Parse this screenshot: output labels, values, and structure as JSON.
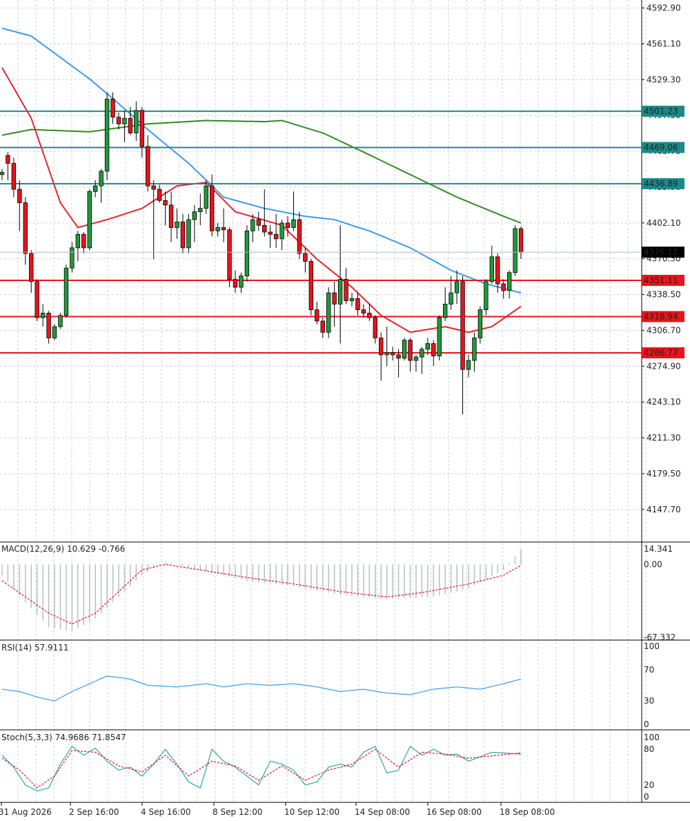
{
  "chart_data": [
    {
      "panel": "price",
      "type": "candlestick",
      "y_axis_labels": [
        "4592.90",
        "4561.10",
        "4529.30",
        "4497.50",
        "4465.70",
        "4433.90",
        "4402.10",
        "4370.30",
        "4338.50",
        "4306.70",
        "4274.90",
        "4243.10",
        "4211.30",
        "4179.50",
        "4147.70"
      ],
      "ylim": [
        4120,
        4600
      ],
      "current_price": "4376.12",
      "levels": [
        {
          "value": 4501.23,
          "label": "4501.23",
          "color": "#1a8a8a"
        },
        {
          "value": 4469.06,
          "label": "4469.06",
          "color": "#1a8a8a"
        },
        {
          "value": 4436.89,
          "label": "4436.89",
          "color": "#1a8a8a"
        },
        {
          "value": 4351.11,
          "label": "4351.11",
          "color": "#e8141b"
        },
        {
          "value": 4318.94,
          "label": "4318.94",
          "color": "#e8141b"
        },
        {
          "value": 4286.77,
          "label": "4286.77",
          "color": "#e8141b"
        }
      ],
      "candles": [
        [
          4445,
          4450,
          4440,
          4447
        ],
        [
          4462,
          4465,
          4440,
          4455
        ],
        [
          4455,
          4460,
          4425,
          4432
        ],
        [
          4432,
          4440,
          4395,
          4420
        ],
        [
          4420,
          4425,
          4365,
          4375
        ],
        [
          4375,
          4378,
          4340,
          4350
        ],
        [
          4350,
          4352,
          4315,
          4318
        ],
        [
          4318,
          4330,
          4310,
          4322
        ],
        [
          4322,
          4324,
          4295,
          4300
        ],
        [
          4300,
          4312,
          4298,
          4310
        ],
        [
          4310,
          4322,
          4308,
          4320
        ],
        [
          4320,
          4365,
          4318,
          4362
        ],
        [
          4362,
          4385,
          4358,
          4380
        ],
        [
          4380,
          4395,
          4368,
          4392
        ],
        [
          4392,
          4394,
          4375,
          4380
        ],
        [
          4380,
          4432,
          4378,
          4430
        ],
        [
          4430,
          4440,
          4425,
          4435
        ],
        [
          4435,
          4450,
          4420,
          4448
        ],
        [
          4448,
          4518,
          4440,
          4512
        ],
        [
          4512,
          4518,
          4490,
          4496
        ],
        [
          4496,
          4500,
          4485,
          4490
        ],
        [
          4490,
          4502,
          4474,
          4495
        ],
        [
          4495,
          4505,
          4480,
          4482
        ],
        [
          4482,
          4510,
          4475,
          4502
        ],
        [
          4502,
          4505,
          4460,
          4470
        ],
        [
          4470,
          4480,
          4430,
          4435
        ],
        [
          4435,
          4440,
          4370,
          4432
        ],
        [
          4432,
          4436,
          4420,
          4422
        ],
        [
          4422,
          4430,
          4400,
          4418
        ],
        [
          4418,
          4430,
          4385,
          4398
        ],
        [
          4398,
          4415,
          4388,
          4403
        ],
        [
          4403,
          4410,
          4375,
          4380
        ],
        [
          4380,
          4410,
          4375,
          4405
        ],
        [
          4405,
          4418,
          4385,
          4412
        ],
        [
          4412,
          4428,
          4400,
          4415
        ],
        [
          4415,
          4440,
          4410,
          4435
        ],
        [
          4435,
          4445,
          4390,
          4395
        ],
        [
          4395,
          4402,
          4390,
          4398
        ],
        [
          4398,
          4415,
          4385,
          4396
        ],
        [
          4396,
          4398,
          4345,
          4352
        ],
        [
          4352,
          4360,
          4340,
          4345
        ],
        [
          4345,
          4358,
          4340,
          4355
        ],
        [
          4355,
          4400,
          4350,
          4395
        ],
        [
          4395,
          4410,
          4385,
          4405
        ],
        [
          4405,
          4412,
          4395,
          4400
        ],
        [
          4400,
          4432,
          4390,
          4394
        ],
        [
          4394,
          4400,
          4380,
          4392
        ],
        [
          4392,
          4410,
          4380,
          4388
        ],
        [
          4388,
          4405,
          4378,
          4402
        ],
        [
          4402,
          4408,
          4390,
          4398
        ],
        [
          4398,
          4430,
          4395,
          4405
        ],
        [
          4405,
          4412,
          4370,
          4375
        ],
        [
          4375,
          4380,
          4358,
          4368
        ],
        [
          4368,
          4370,
          4320,
          4325
        ],
        [
          4325,
          4332,
          4312,
          4315
        ],
        [
          4315,
          4318,
          4300,
          4305
        ],
        [
          4305,
          4345,
          4300,
          4340
        ],
        [
          4340,
          4350,
          4310,
          4330
        ],
        [
          4330,
          4400,
          4295,
          4352
        ],
        [
          4352,
          4362,
          4330,
          4333
        ],
        [
          4333,
          4340,
          4328,
          4335
        ],
        [
          4335,
          4340,
          4320,
          4325
        ],
        [
          4325,
          4330,
          4318,
          4322
        ],
        [
          4322,
          4330,
          4315,
          4318
        ],
        [
          4318,
          4320,
          4295,
          4300
        ],
        [
          4300,
          4305,
          4262,
          4285
        ],
        [
          4285,
          4310,
          4275,
          4287
        ],
        [
          4287,
          4292,
          4280,
          4285
        ],
        [
          4285,
          4290,
          4265,
          4282
        ],
        [
          4282,
          4300,
          4280,
          4298
        ],
        [
          4298,
          4300,
          4270,
          4280
        ],
        [
          4280,
          4285,
          4270,
          4283
        ],
        [
          4283,
          4292,
          4268,
          4290
        ],
        [
          4290,
          4300,
          4285,
          4295
        ],
        [
          4295,
          4298,
          4275,
          4284
        ],
        [
          4284,
          4320,
          4280,
          4318
        ],
        [
          4318,
          4345,
          4315,
          4330
        ],
        [
          4330,
          4355,
          4325,
          4340
        ],
        [
          4340,
          4360,
          4330,
          4350
        ],
        [
          4350,
          4355,
          4232,
          4272
        ],
        [
          4272,
          4285,
          4265,
          4280
        ],
        [
          4280,
          4305,
          4270,
          4300
        ],
        [
          4300,
          4328,
          4295,
          4325
        ],
        [
          4325,
          4352,
          4320,
          4350
        ],
        [
          4350,
          4382,
          4348,
          4372
        ],
        [
          4372,
          4375,
          4340,
          4348
        ],
        [
          4348,
          4352,
          4335,
          4342
        ],
        [
          4342,
          4360,
          4335,
          4358
        ],
        [
          4358,
          4400,
          4355,
          4397
        ],
        [
          4397,
          4399,
          4370,
          4376
        ]
      ],
      "ma_fast_color": "#e8232a",
      "ma_mid_color": "#3b9bea",
      "ma_slow_color": "#2e8b1f"
    },
    {
      "panel": "macd",
      "type": "histogram+line",
      "label": "MACD(12,26,9) 10.629 -0.766",
      "y_axis_labels": [
        "14.341",
        "0.00",
        "-67.332"
      ],
      "ylim": [
        -67.332,
        14.341
      ]
    },
    {
      "panel": "rsi",
      "type": "line",
      "label": "RSI(14) 57.9111",
      "y_axis_labels": [
        "100",
        "70",
        "30",
        "0"
      ],
      "ylim": [
        0,
        100
      ]
    },
    {
      "panel": "stoch",
      "type": "line",
      "label": "Stoch(5,3,3) 74.9686 71.8547",
      "y_axis_labels": [
        "100",
        "80",
        "20",
        "0"
      ],
      "ylim": [
        0,
        100
      ]
    }
  ],
  "x_axis_labels": [
    "31 Aug 2026",
    "2 Sep 16:00",
    "4 Sep 16:00",
    "8 Sep 12:00",
    "10 Sep 12:00",
    "14 Sep 08:00",
    "16 Sep 08:00",
    "18 Sep 08:00"
  ]
}
